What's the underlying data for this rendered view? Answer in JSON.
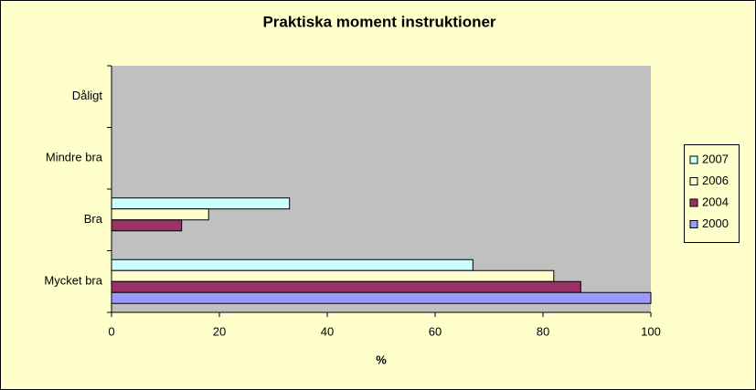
{
  "chart_data": {
    "type": "hbar",
    "title": "Praktiska moment instruktioner",
    "x_label": "%",
    "categories": [
      "Dåligt",
      "Mindre bra",
      "Bra",
      "Mycket bra"
    ],
    "series": [
      {
        "name": "2007",
        "color": "#ccffff",
        "values": [
          0,
          0,
          33,
          67
        ]
      },
      {
        "name": "2006",
        "color": "#ffffcc",
        "values": [
          0,
          0,
          18,
          82
        ]
      },
      {
        "name": "2004",
        "color": "#993366",
        "values": [
          0,
          0,
          13,
          87
        ]
      },
      {
        "name": "2000",
        "color": "#9999ff",
        "values": [
          0,
          0,
          0,
          100
        ]
      }
    ],
    "xlim": [
      0,
      100
    ],
    "xticks": [
      0,
      20,
      40,
      60,
      80,
      100
    ],
    "grid": false,
    "legend": "right"
  }
}
